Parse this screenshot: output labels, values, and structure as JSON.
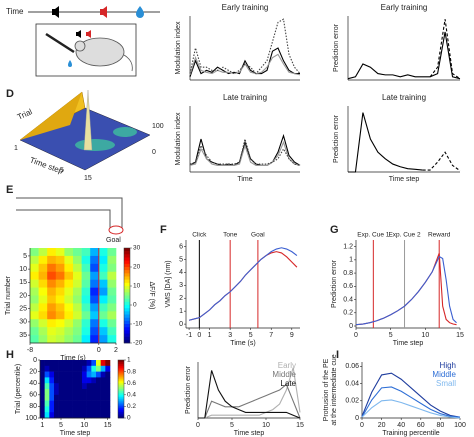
{
  "figure": {
    "letters": [
      "D",
      "E",
      "F",
      "G",
      "H",
      "I"
    ],
    "time_label": "Time",
    "goal": "Goal",
    "surface": {
      "trial": "Trial",
      "time_step": "Time step",
      "ticks": [
        "1",
        "5",
        "15",
        "100",
        "0"
      ]
    }
  },
  "chart_data": [
    {
      "type": "line",
      "title": "Early training",
      "ylabel": "Modulation index",
      "x": [
        0,
        1,
        2,
        3,
        4,
        5,
        6,
        7,
        8,
        9,
        10,
        11,
        12,
        13,
        14,
        15,
        16,
        17,
        18,
        19,
        20
      ],
      "xlim": [
        0,
        20
      ],
      "ylim": [
        0,
        1
      ],
      "series": [
        {
          "color": "#000000",
          "dash": "solid",
          "values": [
            0.05,
            0.3,
            0.1,
            0.15,
            0.12,
            0.2,
            0.15,
            0.1,
            0.12,
            0.1,
            0.3,
            0.15,
            0.1,
            0.1,
            0.15,
            0.45,
            0.5,
            0.3,
            0.15,
            0.1,
            0.1
          ]
        },
        {
          "color": "#999999",
          "dash": "solid",
          "values": [
            0.08,
            0.35,
            0.15,
            0.12,
            0.1,
            0.15,
            0.12,
            0.12,
            0.1,
            0.12,
            0.25,
            0.12,
            0.1,
            0.12,
            0.2,
            0.35,
            0.4,
            0.25,
            0.12,
            0.1,
            0.08
          ]
        },
        {
          "color": "#444444",
          "dash": "dotted",
          "values": [
            0.1,
            0.5,
            0.2,
            0.2,
            0.15,
            0.15,
            0.2,
            0.15,
            0.1,
            0.15,
            0.25,
            0.2,
            0.1,
            0.2,
            0.3,
            0.6,
            0.9,
            0.95,
            0.4,
            0.2,
            0.1
          ]
        }
      ]
    },
    {
      "type": "line",
      "title": "Late training",
      "ylabel": "Modulation index",
      "xlabel": "Time",
      "x": [
        0,
        1,
        2,
        3,
        4,
        5,
        6,
        7,
        8,
        9,
        10,
        11,
        12,
        13,
        14,
        15,
        16,
        17,
        18,
        19,
        20
      ],
      "xlim": [
        0,
        20
      ],
      "ylim": [
        0,
        1
      ],
      "series": [
        {
          "color": "#000000",
          "dash": "solid",
          "values": [
            0.1,
            0.15,
            0.5,
            0.2,
            0.15,
            0.12,
            0.1,
            0.12,
            0.1,
            0.15,
            0.45,
            0.2,
            0.12,
            0.1,
            0.1,
            0.15,
            0.3,
            0.55,
            0.25,
            0.15,
            0.1
          ]
        },
        {
          "color": "#999999",
          "dash": "solid",
          "values": [
            0.1,
            0.12,
            0.35,
            0.2,
            0.12,
            0.1,
            0.1,
            0.1,
            0.1,
            0.12,
            0.4,
            0.15,
            0.1,
            0.1,
            0.1,
            0.15,
            0.25,
            0.45,
            0.2,
            0.12,
            0.1
          ]
        },
        {
          "color": "#444444",
          "dash": "dotted",
          "values": [
            0.12,
            0.15,
            0.4,
            0.25,
            0.15,
            0.12,
            0.12,
            0.12,
            0.12,
            0.15,
            0.5,
            0.2,
            0.12,
            0.12,
            0.12,
            0.15,
            0.2,
            0.35,
            0.2,
            0.12,
            0.1
          ]
        }
      ]
    },
    {
      "type": "line",
      "title": "Early training",
      "ylabel": "Prediction error",
      "x": [
        0,
        1,
        2,
        3,
        4,
        5,
        6,
        7,
        8,
        9,
        10,
        11,
        12,
        13,
        14,
        15
      ],
      "xlim": [
        0,
        15
      ],
      "ylim": [
        0,
        1
      ],
      "series": [
        {
          "color": "#000000",
          "dash": "solid",
          "values": [
            0.02,
            0.05,
            0.25,
            0.2,
            0.1,
            0.08,
            0.08,
            0.05,
            0.08,
            0.05,
            0.05,
            0.05,
            0.1,
            0.75,
            0.05,
            0.02
          ]
        },
        {
          "color": "#000000",
          "dash": "dashed",
          "values": [
            null,
            null,
            null,
            null,
            null,
            null,
            null,
            null,
            null,
            null,
            null,
            0.05,
            0.2,
            0.95,
            0.1,
            0.02
          ]
        }
      ]
    },
    {
      "type": "line",
      "title": "Late training",
      "ylabel": "Prediction error",
      "xlabel": "Time step",
      "x": [
        0,
        1,
        2,
        3,
        4,
        5,
        6,
        7,
        8,
        9,
        10,
        11,
        12,
        13,
        14,
        15
      ],
      "xlim": [
        0,
        15
      ],
      "ylim": [
        0,
        1
      ],
      "series": [
        {
          "color": "#000000",
          "dash": "solid",
          "values": [
            0,
            0,
            0.9,
            0.5,
            0.3,
            0.2,
            0.12,
            0.08,
            0.05,
            0.04,
            0.03,
            null,
            null,
            null,
            null,
            null
          ]
        },
        {
          "color": "#000000",
          "dash": "dashed",
          "values": [
            null,
            null,
            null,
            null,
            null,
            null,
            null,
            null,
            null,
            null,
            0.03,
            0.03,
            0.15,
            0.3,
            0.1,
            0.02
          ]
        }
      ]
    },
    {
      "type": "heatmap",
      "ylabel": "Trial number",
      "xlabel": "Time (s)",
      "xlim": [
        -8,
        2
      ],
      "ylim": [
        2,
        38
      ],
      "yreverse": true,
      "xticks": [
        -8,
        0,
        2
      ],
      "yticks": [
        5,
        10,
        15,
        20,
        25,
        30,
        35
      ],
      "vlines": [
        {
          "x": 0,
          "color": "#d62728"
        }
      ],
      "matrix": [
        [
          5,
          8,
          12,
          10,
          6,
          4,
          2,
          -5,
          0,
          4
        ],
        [
          8,
          12,
          15,
          14,
          10,
          6,
          0,
          -8,
          -2,
          6
        ],
        [
          10,
          14,
          18,
          16,
          12,
          8,
          2,
          -10,
          0,
          5
        ],
        [
          12,
          15,
          20,
          18,
          14,
          10,
          4,
          -6,
          2,
          8
        ],
        [
          9,
          13,
          17,
          15,
          12,
          9,
          3,
          -8,
          -4,
          6
        ],
        [
          7,
          11,
          15,
          13,
          10,
          7,
          1,
          -12,
          -6,
          4
        ],
        [
          6,
          10,
          14,
          12,
          9,
          6,
          0,
          -10,
          -2,
          3
        ],
        [
          8,
          12,
          16,
          14,
          11,
          8,
          2,
          -6,
          2,
          5
        ],
        [
          10,
          13,
          17,
          15,
          12,
          9,
          4,
          -4,
          4,
          7
        ],
        [
          6,
          9,
          12,
          11,
          9,
          6,
          1,
          -8,
          0,
          4
        ],
        [
          4,
          7,
          10,
          9,
          7,
          5,
          0,
          -10,
          -4,
          2
        ],
        [
          3,
          6,
          9,
          8,
          6,
          4,
          -2,
          -12,
          -6,
          0
        ]
      ],
      "colorbar": {
        "zlim": [
          -20,
          30
        ],
        "zticks": [
          30,
          20,
          10,
          0,
          -10,
          -20
        ],
        "label": "ΔF/F (%)"
      }
    },
    {
      "type": "line",
      "ylabel": "VMS [DA] (nm)",
      "xlabel": "Time (s)",
      "x": [
        -1,
        -0.5,
        0,
        0.5,
        1,
        1.5,
        2,
        2.5,
        3,
        3.5,
        4,
        4.5,
        5,
        5.5,
        6,
        6.5,
        7,
        7.5,
        8,
        8.5,
        9,
        9.5
      ],
      "xlim": [
        -1.3,
        9.8
      ],
      "ylim": [
        -0.3,
        6.5
      ],
      "xticks": [
        -1,
        0,
        1,
        3,
        5,
        7,
        9
      ],
      "yticks": [
        0,
        1,
        2,
        3,
        4,
        5,
        6
      ],
      "vlines": [
        {
          "x": 0,
          "label": "Click",
          "color": "#000000"
        },
        {
          "x": 3,
          "label": "Tone",
          "color": "#d62728"
        },
        {
          "x": 5.7,
          "label": "Goal",
          "color": "#d62728"
        }
      ],
      "series": [
        {
          "color": "#d62728",
          "dash": "solid",
          "values": [
            0.3,
            0.4,
            0.5,
            0.8,
            1.1,
            1.5,
            1.8,
            2.2,
            2.5,
            2.9,
            3.3,
            3.8,
            4.2,
            4.6,
            5,
            5.3,
            5.5,
            5.6,
            5.5,
            5.2,
            4.8,
            4.4
          ]
        },
        {
          "color": "#3b5fd1",
          "dash": "solid",
          "values": [
            0.3,
            0.4,
            0.5,
            0.8,
            1.1,
            1.5,
            1.8,
            2.2,
            2.5,
            2.9,
            3.3,
            3.8,
            4.2,
            4.6,
            5,
            5.3,
            5.6,
            5.8,
            5.9,
            5.8,
            5.6,
            5.3
          ]
        }
      ]
    },
    {
      "type": "line",
      "ylabel": "Prediction error",
      "xlabel": "Time step",
      "x": [
        0,
        1,
        2,
        3,
        4,
        5,
        6,
        7,
        8,
        9,
        10,
        11,
        12,
        12.5,
        13,
        13.5,
        14,
        14.5
      ],
      "xlim": [
        0,
        15
      ],
      "ylim": [
        -0.03,
        1.3
      ],
      "xticks": [
        0,
        5,
        10,
        15
      ],
      "yticks": [
        0,
        0.2,
        0.4,
        0.6,
        0.8,
        1,
        1.2
      ],
      "vlines": [
        {
          "x": 2.5,
          "label": "Exp. Cue 1",
          "color": "#d62728"
        },
        {
          "x": 7,
          "label": "Exp. Cue 2",
          "color": "#999999"
        },
        {
          "x": 12,
          "label": "Reward",
          "color": "#d62728"
        }
      ],
      "series": [
        {
          "color": "#d62728",
          "dash": "solid",
          "values": [
            0.02,
            0.03,
            0.05,
            0.08,
            0.12,
            0.17,
            0.23,
            0.3,
            0.4,
            0.52,
            0.66,
            0.82,
            1.1,
            0.3,
            0.1,
            0.05,
            0.03,
            0.02
          ]
        },
        {
          "color": "#3b5fd1",
          "dash": "solid",
          "values": [
            0.02,
            0.03,
            0.05,
            0.08,
            0.12,
            0.17,
            0.23,
            0.3,
            0.4,
            0.52,
            0.66,
            0.82,
            1.05,
            1.02,
            0.7,
            0.3,
            0.1,
            0.05
          ]
        }
      ]
    },
    {
      "type": "heatmap",
      "ylabel": "Trial (percentile)",
      "xlabel": "Time step",
      "xlim": [
        0.5,
        15.5
      ],
      "ylim": [
        0,
        100
      ],
      "yreverse": true,
      "xticks": [
        1,
        5,
        10,
        15
      ],
      "yticks": [
        0,
        20,
        40,
        60,
        80,
        100
      ],
      "matrix": [
        [
          0,
          0,
          0,
          0,
          0,
          0,
          0,
          0,
          0,
          0,
          0.05,
          0.2,
          0.6,
          0.9,
          1
        ],
        [
          0,
          0.05,
          0,
          0,
          0,
          0,
          0,
          0,
          0,
          0.05,
          0.2,
          0.4,
          0.5,
          0.3,
          0.1
        ],
        [
          0,
          0.2,
          0.1,
          0,
          0,
          0,
          0,
          0,
          0,
          0.1,
          0.25,
          0.3,
          0.2,
          0.05,
          0
        ],
        [
          0,
          0.35,
          0.15,
          0,
          0,
          0,
          0,
          0,
          0,
          0.1,
          0.1,
          0.05,
          0,
          0,
          0
        ],
        [
          0,
          0.45,
          0.2,
          0.05,
          0,
          0,
          0,
          0,
          0,
          0.05,
          0,
          0,
          0,
          0,
          0
        ],
        [
          0,
          0.5,
          0.2,
          0.05,
          0,
          0,
          0,
          0,
          0,
          0,
          0,
          0,
          0,
          0,
          0
        ],
        [
          0,
          0.5,
          0.2,
          0,
          0,
          0,
          0,
          0,
          0,
          0,
          0,
          0,
          0,
          0,
          0
        ],
        [
          0,
          0.45,
          0.15,
          0,
          0,
          0,
          0,
          0,
          0,
          0,
          0,
          0,
          0,
          0,
          0
        ],
        [
          0,
          0.4,
          0.15,
          0,
          0,
          0,
          0,
          0,
          0,
          0,
          0,
          0,
          0,
          0,
          0
        ],
        [
          0,
          0.35,
          0.1,
          0,
          0,
          0,
          0,
          0,
          0,
          0,
          0,
          0,
          0,
          0,
          0
        ]
      ],
      "colorbar": {
        "zlim": [
          0,
          1
        ],
        "zticks": [
          1,
          0.8,
          0.6,
          0.4,
          0.2,
          0
        ]
      }
    },
    {
      "type": "line",
      "ylabel": "Prediction error",
      "xlabel": "Time step",
      "x": [
        0,
        1,
        2,
        3,
        4,
        5,
        6,
        7,
        8,
        9,
        10,
        11,
        12,
        13,
        14,
        15
      ],
      "xlim": [
        0,
        15
      ],
      "ylim": [
        0,
        1
      ],
      "xticks": [
        0,
        5,
        10,
        15
      ],
      "legend": "upper right",
      "series": [
        {
          "name": "Early",
          "color": "#b0b0b0",
          "dash": "solid",
          "values": [
            0,
            0,
            0.05,
            0.05,
            0.05,
            0.05,
            0.05,
            0.05,
            0.05,
            0.05,
            0.1,
            0.15,
            0.25,
            0.5,
            0.9,
            0.1
          ]
        },
        {
          "name": "Middle",
          "color": "#777777",
          "dash": "solid",
          "values": [
            0,
            0,
            0.3,
            0.25,
            0.2,
            0.2,
            0.2,
            0.25,
            0.3,
            0.35,
            0.4,
            0.45,
            0.5,
            0.6,
            0.3,
            0
          ]
        },
        {
          "name": "Late",
          "color": "#111111",
          "dash": "solid",
          "values": [
            0,
            0,
            0.85,
            0.5,
            0.3,
            0.2,
            0.15,
            0.1,
            0.1,
            0.1,
            0.1,
            0.1,
            0.1,
            0.1,
            0.05,
            0
          ]
        }
      ]
    },
    {
      "type": "line",
      "ylabel": [
        "Protrusion of the PE",
        "at the intermediate cue"
      ],
      "xlabel": "Training percentile",
      "x": [
        0,
        10,
        20,
        30,
        40,
        50,
        60,
        70,
        80,
        90,
        100
      ],
      "xlim": [
        0,
        100
      ],
      "ylim": [
        0,
        0.065
      ],
      "xticks": [
        0,
        20,
        40,
        60,
        80,
        100
      ],
      "yticks": [
        0,
        0.02,
        0.04,
        0.06
      ],
      "legend": "upper right",
      "series": [
        {
          "name": "High",
          "color": "#1f3d9e",
          "dash": "solid",
          "values": [
            0.002,
            0.03,
            0.05,
            0.052,
            0.045,
            0.035,
            0.025,
            0.015,
            0.008,
            0.003,
            0.001
          ]
        },
        {
          "name": "Middle",
          "color": "#2f6fd6",
          "dash": "solid",
          "values": [
            0.001,
            0.021,
            0.035,
            0.036,
            0.031,
            0.024,
            0.017,
            0.01,
            0.005,
            0.002,
            0.001
          ]
        },
        {
          "name": "Small",
          "color": "#7fb8ee",
          "dash": "solid",
          "values": [
            0.001,
            0.012,
            0.02,
            0.021,
            0.018,
            0.014,
            0.01,
            0.006,
            0.003,
            0.001,
            0
          ]
        }
      ]
    }
  ]
}
